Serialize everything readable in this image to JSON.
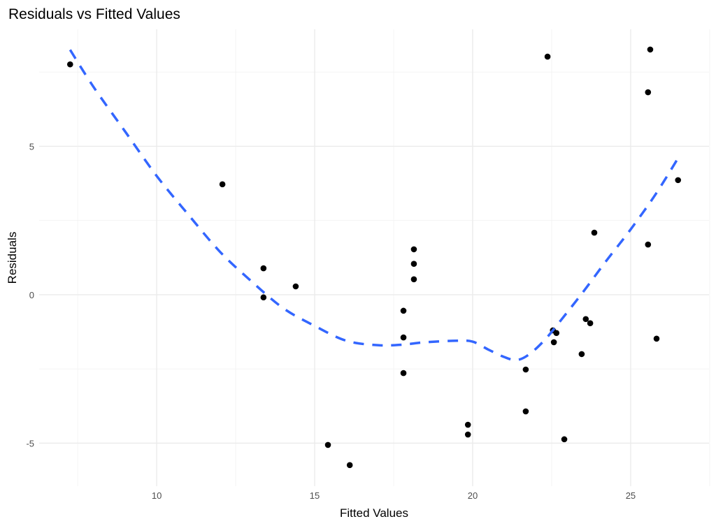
{
  "chart_data": {
    "type": "scatter",
    "title": "Residuals vs Fitted Values",
    "xlabel": "Fitted Values",
    "ylabel": "Residuals",
    "xlim": [
      6.28,
      27.48
    ],
    "ylim": [
      -6.45,
      8.94
    ],
    "x_ticks": [
      10,
      15,
      20,
      25
    ],
    "x_tick_labels": [
      "10",
      "15",
      "20",
      "25"
    ],
    "x_minor": [
      7.5,
      12.5,
      17.5,
      22.5,
      27.5
    ],
    "y_ticks": [
      -5,
      0,
      5
    ],
    "y_tick_labels": [
      "-5",
      "0",
      "5"
    ],
    "y_minor": [
      -2.5,
      2.5,
      7.5
    ],
    "grid": true,
    "legend": null,
    "points": [
      {
        "x": 7.26,
        "y": 7.76
      },
      {
        "x": 12.08,
        "y": 3.72
      },
      {
        "x": 13.38,
        "y": 0.89
      },
      {
        "x": 13.38,
        "y": -0.09
      },
      {
        "x": 14.4,
        "y": 0.28
      },
      {
        "x": 15.42,
        "y": -5.06
      },
      {
        "x": 16.11,
        "y": -5.74
      },
      {
        "x": 17.81,
        "y": -0.54
      },
      {
        "x": 17.81,
        "y": -1.44
      },
      {
        "x": 17.81,
        "y": -2.64
      },
      {
        "x": 18.14,
        "y": 1.53
      },
      {
        "x": 18.14,
        "y": 1.04
      },
      {
        "x": 18.14,
        "y": 0.52
      },
      {
        "x": 19.85,
        "y": -4.38
      },
      {
        "x": 19.85,
        "y": -4.71
      },
      {
        "x": 21.68,
        "y": -2.52
      },
      {
        "x": 21.68,
        "y": -3.93
      },
      {
        "x": 22.37,
        "y": 8.02
      },
      {
        "x": 22.54,
        "y": -1.2
      },
      {
        "x": 22.65,
        "y": -1.29
      },
      {
        "x": 22.57,
        "y": -1.6
      },
      {
        "x": 22.9,
        "y": -4.87
      },
      {
        "x": 23.45,
        "y": -2.0
      },
      {
        "x": 23.58,
        "y": -0.82
      },
      {
        "x": 23.72,
        "y": -0.96
      },
      {
        "x": 23.85,
        "y": 2.09
      },
      {
        "x": 25.55,
        "y": 6.82
      },
      {
        "x": 25.62,
        "y": 8.26
      },
      {
        "x": 25.55,
        "y": 1.69
      },
      {
        "x": 25.82,
        "y": -1.48
      },
      {
        "x": 26.5,
        "y": 3.86
      }
    ],
    "smooth_line": {
      "style": "dashed",
      "color": "#3366ff",
      "x": [
        7.26,
        8.0,
        9.0,
        10.0,
        11.0,
        12.0,
        13.0,
        14.0,
        15.0,
        16.0,
        17.0,
        17.8,
        18.5,
        19.5,
        20.0,
        20.5,
        21.0,
        21.4,
        21.8,
        22.3,
        22.8,
        23.5,
        24.2,
        25.0,
        25.8,
        26.5
      ],
      "y": [
        8.25,
        7.0,
        5.5,
        4.0,
        2.7,
        1.45,
        0.45,
        -0.45,
        -1.05,
        -1.55,
        -1.7,
        -1.68,
        -1.6,
        -1.55,
        -1.58,
        -1.85,
        -2.1,
        -2.2,
        -2.0,
        -1.5,
        -0.85,
        0.1,
        1.1,
        2.2,
        3.4,
        4.6
      ]
    },
    "point_color": "#000000",
    "background": "#ffffff"
  }
}
